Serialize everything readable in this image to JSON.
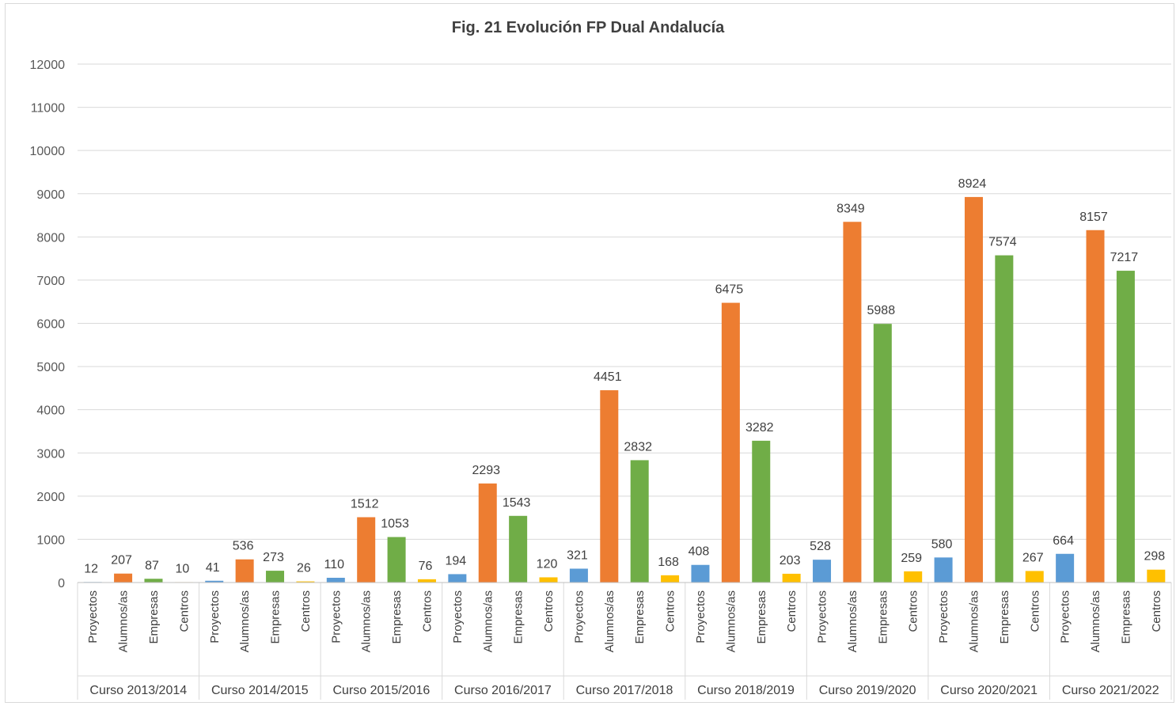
{
  "chart_data": {
    "type": "bar",
    "title": "Fig. 21 Evolución FP Dual Andalucía",
    "xlabel": "",
    "ylabel": "",
    "ylim": [
      0,
      12000
    ],
    "yticks": [
      0,
      1000,
      2000,
      3000,
      4000,
      5000,
      6000,
      7000,
      8000,
      9000,
      10000,
      11000,
      12000
    ],
    "grid": true,
    "legend": "none",
    "subcategories": [
      "Proyectos",
      "Alumnos/as",
      "Empresas",
      "Centros"
    ],
    "subcategory_colors": [
      "#5b9bd5",
      "#ed7d31",
      "#70ad47",
      "#ffc000"
    ],
    "groups": [
      {
        "label": "Curso 2013/2014",
        "values": [
          12,
          207,
          87,
          10
        ]
      },
      {
        "label": "Curso 2014/2015",
        "values": [
          41,
          536,
          273,
          26
        ]
      },
      {
        "label": "Curso 2015/2016",
        "values": [
          110,
          1512,
          1053,
          76
        ]
      },
      {
        "label": "Curso 2016/2017",
        "values": [
          194,
          2293,
          1543,
          120
        ]
      },
      {
        "label": "Curso 2017/2018",
        "values": [
          321,
          4451,
          2832,
          168
        ]
      },
      {
        "label": "Curso 2018/2019",
        "values": [
          408,
          6475,
          3282,
          203
        ]
      },
      {
        "label": "Curso 2019/2020",
        "values": [
          528,
          8349,
          5988,
          259
        ]
      },
      {
        "label": "Curso 2020/2021",
        "values": [
          580,
          8924,
          7574,
          267
        ]
      },
      {
        "label": "Curso 2021/2022",
        "values": [
          664,
          8157,
          7217,
          298
        ]
      }
    ]
  }
}
